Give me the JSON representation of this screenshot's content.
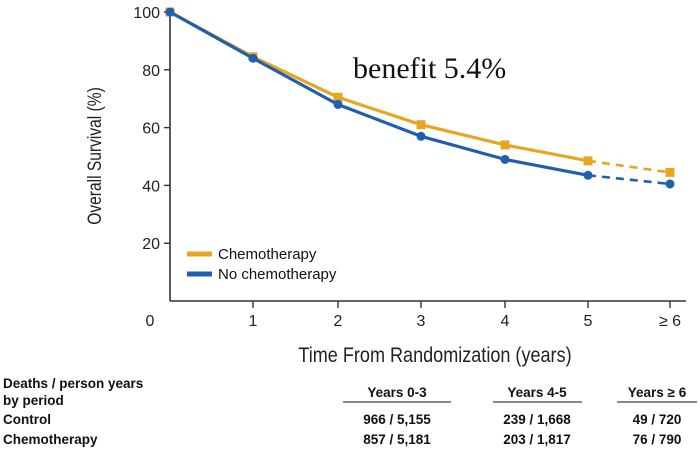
{
  "chart_data": {
    "type": "line",
    "title": "",
    "annotation": "benefit 5.4%",
    "xlabel": "Time From Randomization (years)",
    "ylabel": "Overall Survival (%)",
    "x_ticks": [
      "0",
      "1",
      "2",
      "3",
      "4",
      "5",
      "≥ 6"
    ],
    "y_ticks": [
      "100",
      "80",
      "60",
      "40",
      "20"
    ],
    "ylim": [
      0,
      100
    ],
    "grid": false,
    "legend_position": "lower-left",
    "series": [
      {
        "name": "Chemotherapy",
        "color": "#E6A622",
        "marker": "square",
        "x": [
          0,
          1,
          2,
          3,
          4,
          5,
          6
        ],
        "y": [
          100,
          84.5,
          70.5,
          61,
          54,
          48.5,
          44.5
        ],
        "dashed_from_index": 5
      },
      {
        "name": "No chemotherapy",
        "color": "#1F5FAD",
        "marker": "circle",
        "x": [
          0,
          1,
          2,
          3,
          4,
          5,
          6
        ],
        "y": [
          100,
          84,
          68,
          57,
          49,
          43.5,
          40.5
        ],
        "dashed_from_index": 5
      }
    ],
    "table": {
      "row_header_lines": [
        "Deaths / person years",
        "by period"
      ],
      "columns": [
        "Years 0-3",
        "Years 4-5",
        "Years ≥ 6"
      ],
      "rows": [
        {
          "label": "Control",
          "values": [
            "966 / 5,155",
            "239 / 1,668",
            "49 / 720"
          ]
        },
        {
          "label": "Chemotherapy",
          "values": [
            "857 / 5,181",
            "203 / 1,817",
            "76 / 790"
          ]
        }
      ]
    }
  }
}
